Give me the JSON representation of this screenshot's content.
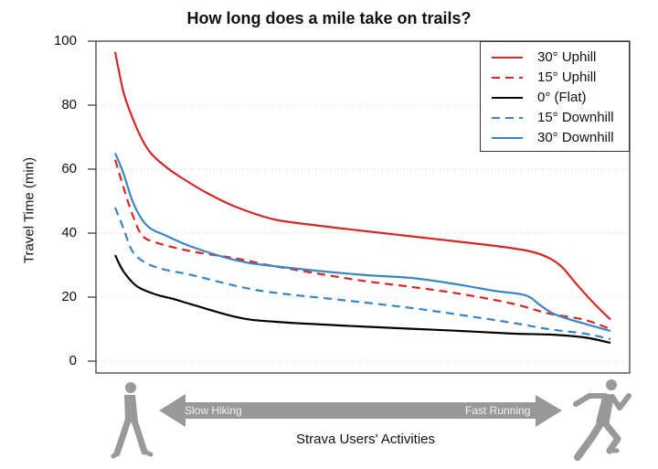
{
  "chart_data": {
    "type": "line",
    "title": "How long does a mile take on trails?",
    "xlabel": "Strava Users' Activities",
    "ylabel": "Travel Time (min)",
    "ylim": [
      0,
      100
    ],
    "yticks": [
      0,
      20,
      40,
      60,
      80,
      100
    ],
    "xlim": [
      0,
      100
    ],
    "x_note": "Relative position along activity spectrum (Slow Hiking → Fast Running); no numeric x ticks shown",
    "grid": "horizontal dotted at y ticks",
    "legend_position": "top-right",
    "annotations": {
      "left_arrow": "Slow Hiking",
      "right_arrow": "Fast Running",
      "left_icon": "walking-person-icon",
      "right_icon": "running-person-icon"
    },
    "series": [
      {
        "name": "30° Uphill",
        "color": "#d62728",
        "dash": "solid",
        "x": [
          0,
          1.7,
          3.5,
          5.4,
          7.2,
          10,
          13.7,
          19.2,
          24.7,
          32.1,
          41.3,
          50.6,
          59.8,
          69,
          78.2,
          83.8,
          87.5,
          90.2,
          93,
          96.7,
          100
        ],
        "values": [
          96.6,
          84,
          76,
          69.4,
          65,
          61,
          57,
          52,
          48,
          44.3,
          42.3,
          40.6,
          39,
          37.4,
          35.7,
          34.3,
          32.3,
          29.4,
          24.3,
          18,
          13
        ]
      },
      {
        "name": "15° Uphill",
        "color": "#d62728",
        "dash": "dashed",
        "x": [
          0,
          1.7,
          3.5,
          5.4,
          8.1,
          15.5,
          24.7,
          32.1,
          48.7,
          59.8,
          69,
          80.1,
          87.5,
          94.8,
          100
        ],
        "values": [
          62.9,
          54.3,
          45.7,
          39.4,
          37.1,
          34.3,
          32,
          29.7,
          25.4,
          23.2,
          21.2,
          18,
          14.9,
          12.9,
          10
        ]
      },
      {
        "name": "0° (Flat)",
        "color": "#000000",
        "dash": "solid",
        "x": [
          0,
          1.7,
          4.4,
          8.1,
          11.8,
          15.5,
          24.7,
          32.1,
          48.7,
          59.8,
          69,
          80.1,
          87.5,
          94.8,
          100
        ],
        "values": [
          33.1,
          28,
          23.4,
          20.9,
          19.4,
          17.7,
          13.7,
          12.3,
          10.9,
          10.1,
          9.5,
          8.6,
          8.3,
          7.4,
          5.7
        ]
      },
      {
        "name": "15° Downhill",
        "color": "#3a86c4",
        "dash": "dashed",
        "x": [
          0,
          1.7,
          3.5,
          6.3,
          10,
          15.5,
          24.7,
          32.1,
          48.7,
          59.8,
          69,
          80.1,
          87.5,
          94.8,
          100
        ],
        "values": [
          48,
          41.4,
          34.3,
          30.6,
          28.6,
          26.9,
          23.4,
          21.4,
          18.6,
          16.6,
          14.6,
          12,
          10,
          8.6,
          6.9
        ]
      },
      {
        "name": "30° Downhill",
        "color": "#3a86c4",
        "dash": "solid",
        "x": [
          0,
          1.7,
          3.5,
          5.4,
          7.2,
          10,
          15.5,
          24.7,
          32.1,
          48.7,
          59.8,
          69,
          76.4,
          82.8,
          85.6,
          88.4,
          92.1,
          100
        ],
        "values": [
          65,
          58.6,
          50,
          44.3,
          41.4,
          39.4,
          35.7,
          31.4,
          29.7,
          27.1,
          26,
          24,
          22,
          20.6,
          17.7,
          14.9,
          12.9,
          9.4
        ]
      }
    ]
  },
  "legend": {
    "items": [
      {
        "label": "30° Uphill"
      },
      {
        "label": "15° Uphill"
      },
      {
        "label": "0° (Flat)"
      },
      {
        "label": "15° Downhill"
      },
      {
        "label": "30° Downhill"
      }
    ]
  }
}
